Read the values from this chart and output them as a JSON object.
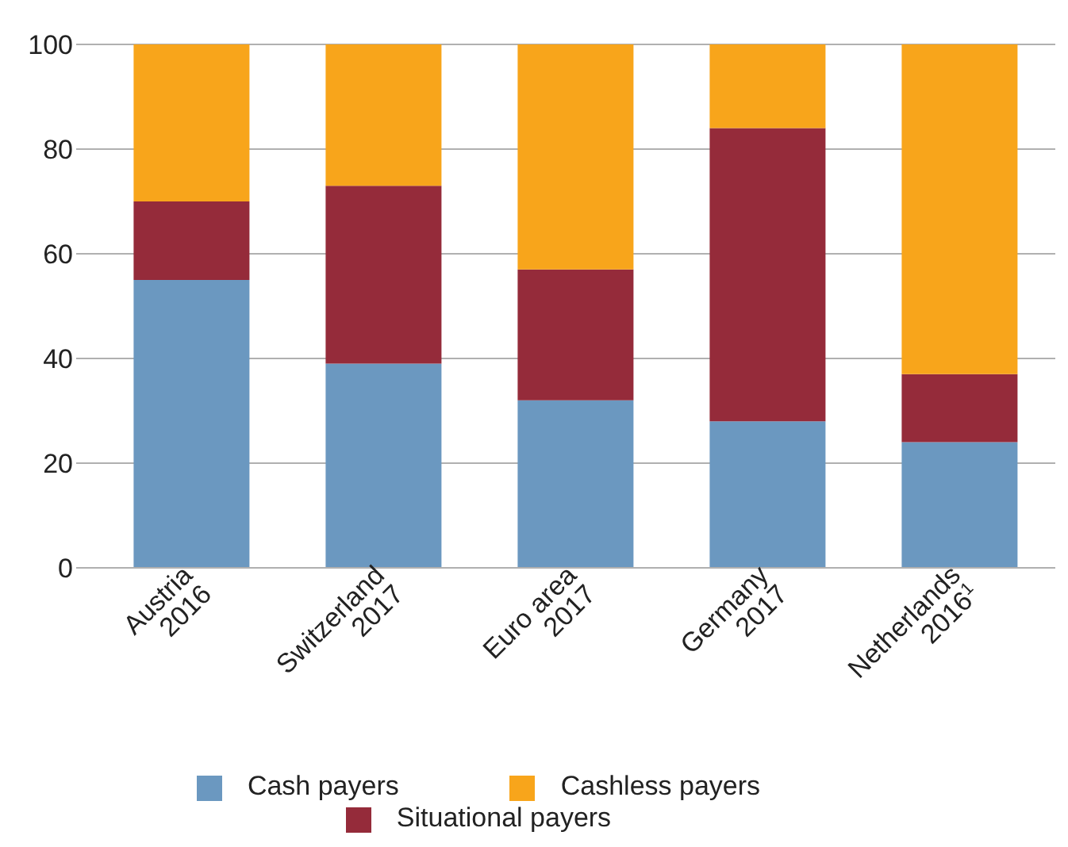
{
  "chart_data": {
    "type": "bar",
    "stacked": true,
    "categories": [
      "Austria\n2016",
      "Switzerland\n2017",
      "Euro area\n2017",
      "Germany\n2017",
      "Netherlands\n2016$^{1}$"
    ],
    "series": [
      {
        "name": "Cash payers",
        "color": "#6b98c0",
        "values": [
          55,
          39,
          32,
          28,
          24
        ]
      },
      {
        "name": "Situational payers",
        "color": "#952b3a",
        "values": [
          15,
          34,
          25,
          56,
          13
        ]
      },
      {
        "name": "Cashless payers",
        "color": "#f8a51b",
        "values": [
          30,
          27,
          43,
          16,
          63
        ]
      }
    ],
    "ylim": [
      0,
      100
    ],
    "yticks": [
      0,
      20,
      40,
      60,
      80,
      100
    ],
    "grid": "y",
    "legend": "bottom"
  }
}
